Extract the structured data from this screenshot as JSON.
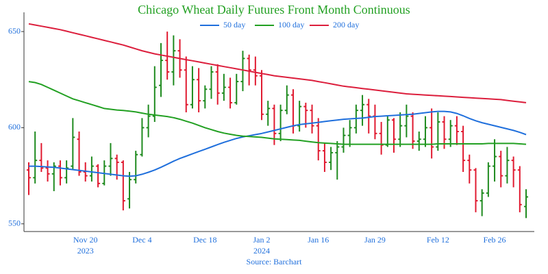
{
  "chart_data": {
    "type": "ohlc",
    "title": "Chicago Wheat Daily Futures Front Month Continuous",
    "source": "Source: Barchart",
    "categories": [
      null,
      null,
      null,
      null,
      null,
      null,
      null,
      null,
      null,
      "Nov 20",
      null,
      null,
      null,
      null,
      null,
      null,
      null,
      null,
      "Dec 4",
      null,
      null,
      null,
      null,
      null,
      null,
      null,
      null,
      null,
      "Dec 18",
      null,
      null,
      null,
      null,
      null,
      null,
      null,
      null,
      "Jan 2",
      null,
      null,
      null,
      null,
      null,
      null,
      null,
      null,
      "Jan 16",
      null,
      null,
      null,
      null,
      null,
      null,
      null,
      null,
      "Jan 29",
      null,
      null,
      null,
      null,
      null,
      null,
      null,
      null,
      null,
      "Feb 12",
      null,
      null,
      null,
      null,
      null,
      null,
      null,
      null,
      "Feb 26",
      null,
      null,
      null,
      null,
      null
    ],
    "years": [
      null,
      null,
      null,
      null,
      null,
      null,
      null,
      null,
      null,
      "2023",
      null,
      null,
      null,
      null,
      null,
      null,
      null,
      null,
      null,
      null,
      null,
      null,
      null,
      null,
      null,
      null,
      null,
      null,
      null,
      null,
      null,
      null,
      null,
      null,
      null,
      null,
      null,
      "2024",
      null,
      null,
      null,
      null,
      null,
      null,
      null,
      null,
      null,
      null,
      null,
      null,
      null,
      null,
      null,
      null,
      null,
      null,
      null,
      null,
      null,
      null,
      null,
      null,
      null,
      null,
      null,
      null,
      null,
      null,
      null,
      null,
      null,
      null,
      null,
      null,
      null,
      null,
      null,
      null,
      null,
      null
    ],
    "open": [
      578,
      574,
      583,
      579,
      576,
      580,
      574,
      580,
      594,
      577,
      575,
      580,
      571,
      580,
      584,
      582,
      563,
      573,
      586,
      600,
      606,
      622,
      635,
      629,
      640,
      630,
      612,
      625,
      614,
      620,
      629,
      618,
      621,
      613,
      624,
      636,
      630,
      627,
      607,
      610,
      597,
      609,
      617,
      601,
      611,
      609,
      601,
      588,
      582,
      587,
      590,
      596,
      600,
      609,
      612,
      606,
      597,
      591,
      604,
      594,
      601,
      606,
      593,
      594,
      600,
      590,
      603,
      594,
      601,
      598,
      583,
      578,
      562,
      566,
      580,
      585,
      575,
      583,
      578,
      559
    ],
    "high": [
      582,
      598,
      592,
      583,
      582,
      583,
      583,
      605,
      598,
      582,
      585,
      581,
      583,
      592,
      586,
      583,
      577,
      588,
      605,
      612,
      632,
      644,
      650,
      648,
      646,
      637,
      632,
      631,
      622,
      632,
      633,
      628,
      626,
      628,
      640,
      638,
      637,
      630,
      614,
      612,
      612,
      622,
      620,
      614,
      613,
      612,
      605,
      592,
      590,
      593,
      600,
      604,
      612,
      617,
      615,
      612,
      603,
      606,
      605,
      608,
      612,
      608,
      598,
      606,
      610,
      608,
      606,
      604,
      606,
      601,
      586,
      579,
      568,
      582,
      594,
      588,
      590,
      585,
      580,
      568
    ],
    "low": [
      565,
      571,
      577,
      572,
      567,
      570,
      571,
      578,
      575,
      572,
      572,
      569,
      570,
      575,
      573,
      557,
      558,
      571,
      585,
      595,
      603,
      616,
      625,
      622,
      626,
      608,
      610,
      608,
      610,
      615,
      612,
      614,
      610,
      612,
      619,
      622,
      622,
      604,
      601,
      591,
      593,
      607,
      597,
      598,
      600,
      597,
      583,
      577,
      578,
      573,
      587,
      590,
      597,
      601,
      597,
      594,
      586,
      590,
      587,
      590,
      595,
      589,
      588,
      590,
      584,
      588,
      589,
      590,
      591,
      577,
      571,
      556,
      554,
      564,
      572,
      569,
      571,
      569,
      556,
      553
    ],
    "close": [
      574,
      583,
      579,
      576,
      580,
      574,
      579,
      595,
      577,
      575,
      580,
      571,
      580,
      584,
      582,
      562,
      573,
      586,
      600,
      606,
      621,
      635,
      629,
      640,
      630,
      612,
      625,
      614,
      620,
      629,
      618,
      621,
      613,
      624,
      636,
      630,
      627,
      607,
      610,
      597,
      609,
      617,
      601,
      611,
      609,
      601,
      588,
      582,
      587,
      590,
      596,
      600,
      609,
      612,
      606,
      597,
      591,
      604,
      594,
      601,
      606,
      593,
      594,
      600,
      590,
      603,
      594,
      601,
      598,
      583,
      578,
      562,
      566,
      580,
      585,
      575,
      583,
      578,
      560,
      564
    ],
    "up_color": "#1e8a1e",
    "down_color": "#e0192f",
    "series": [
      {
        "name": "50 day",
        "color": "#1f6fdc",
        "values": [
          580,
          580,
          579.8,
          579.6,
          579.4,
          579,
          578.6,
          578.2,
          577.8,
          577.4,
          577,
          576.6,
          576.2,
          575.8,
          575.4,
          575,
          574.8,
          575,
          575.8,
          576.8,
          578,
          579.4,
          581,
          582.6,
          584,
          585.2,
          586.4,
          587.6,
          588.8,
          590,
          591.2,
          592.4,
          593.4,
          594.4,
          595.2,
          595.8,
          596.4,
          597,
          597.8,
          598.6,
          599.4,
          600.2,
          601,
          601.6,
          602,
          602.4,
          602.8,
          603.2,
          603.6,
          604,
          604.4,
          604.6,
          604.8,
          605,
          605.4,
          605.8,
          606,
          606.2,
          606.4,
          606.6,
          606.8,
          607,
          607.4,
          607.8,
          608.2,
          608.5,
          608.5,
          608.2,
          607.4,
          606.2,
          604.8,
          603.6,
          602.6,
          601.8,
          601,
          600.2,
          599.4,
          598.6,
          597.6,
          596.4
        ]
      },
      {
        "name": "100 day",
        "color": "#22a022",
        "values": [
          624,
          623.5,
          622.5,
          621,
          619.5,
          618,
          616.5,
          615,
          614,
          613,
          612,
          611,
          610,
          609.6,
          609.2,
          609,
          608.6,
          608.2,
          607.6,
          607,
          606.6,
          606.2,
          605.8,
          605.2,
          604.4,
          603.4,
          602.4,
          601.2,
          600,
          599,
          598,
          597.2,
          596.6,
          596,
          595.6,
          595.4,
          595.2,
          595,
          594.6,
          594.2,
          594,
          593.8,
          593.6,
          593.4,
          593,
          592.6,
          592.2,
          592,
          591.8,
          591.6,
          591.4,
          591.4,
          591.4,
          591.4,
          591.4,
          591.4,
          591.4,
          591.4,
          591.4,
          591.4,
          591.4,
          591.4,
          591.4,
          591.4,
          591.4,
          591.6,
          591.6,
          591.6,
          591.6,
          591.6,
          591.6,
          591.6,
          591.6,
          591.8,
          591.8,
          591.8,
          591.8,
          591.8,
          591.6,
          591.4
        ]
      },
      {
        "name": "200 day",
        "color": "#dc1e3c",
        "values": [
          654,
          653.4,
          652.8,
          652.2,
          651.6,
          651,
          650.2,
          649.4,
          648.6,
          647.8,
          647,
          646.2,
          645.4,
          644.6,
          643.8,
          643,
          642,
          641,
          640,
          639.2,
          638.4,
          637.8,
          637.2,
          636.6,
          636,
          635.4,
          634.8,
          634.2,
          633.6,
          633,
          632.4,
          631.8,
          631.2,
          630.6,
          630,
          629.4,
          628.8,
          628.2,
          627.6,
          627,
          626.6,
          626.2,
          625.8,
          625.4,
          625,
          624.6,
          624,
          623.4,
          622.8,
          622.2,
          621.6,
          621.2,
          620.8,
          620.4,
          620,
          619.6,
          619.2,
          618.8,
          618.4,
          618,
          617.6,
          617.4,
          617.2,
          617,
          616.8,
          616.6,
          616.4,
          616.2,
          616,
          615.8,
          615.6,
          615.4,
          615.2,
          615,
          614.8,
          614.6,
          614.2,
          613.8,
          613.4,
          613
        ]
      }
    ],
    "ylim": [
      546,
      660
    ],
    "yticks": [
      550,
      600,
      650
    ],
    "grid": false,
    "legend": "top"
  }
}
